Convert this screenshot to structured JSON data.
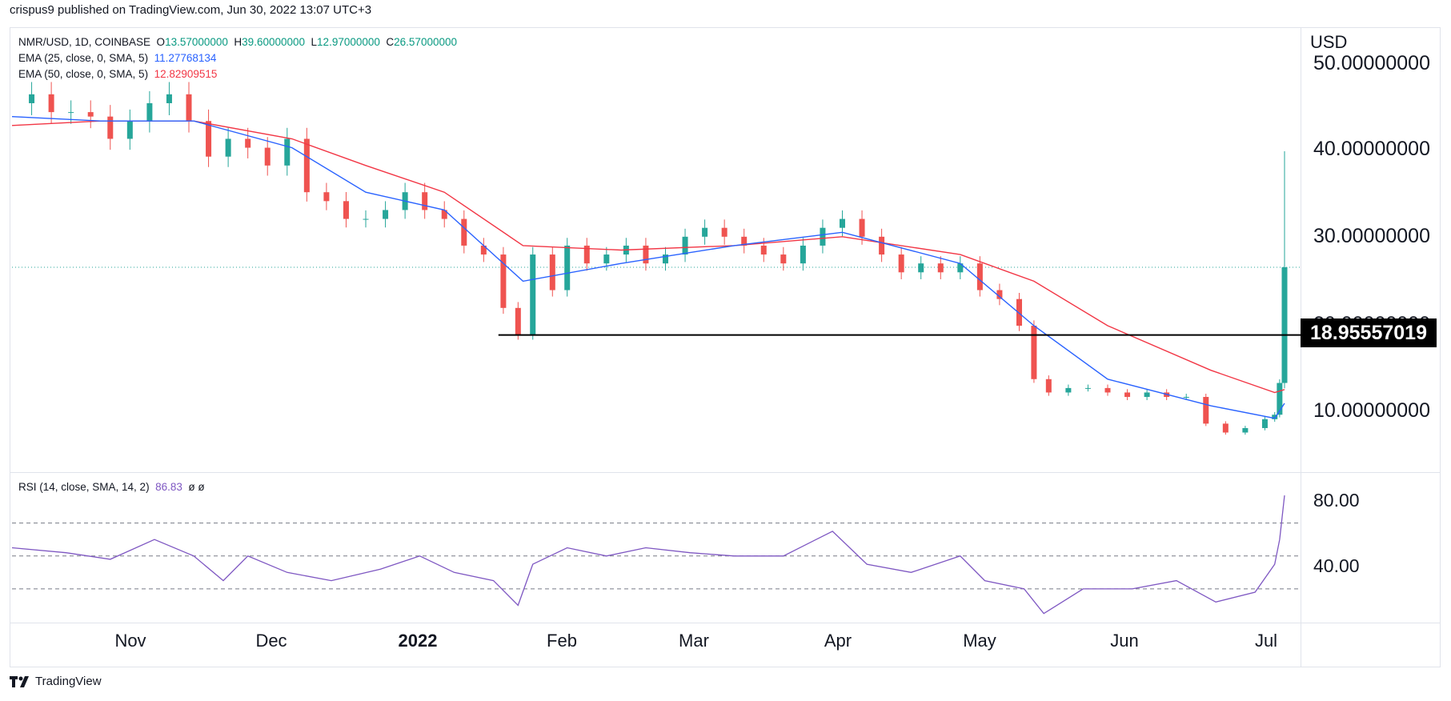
{
  "header": {
    "published": "crispus9 published on TradingView.com, Jun 30, 2022 13:07 UTC+3"
  },
  "legend": {
    "symbol": "NMR/USD, 1D, COINBASE",
    "o_label": "O",
    "o_val": "13.57000000",
    "h_label": "H",
    "h_val": "39.60000000",
    "l_label": "L",
    "l_val": "12.97000000",
    "c_label": "C",
    "c_val": "26.57000000",
    "ema25_label": "EMA (25, close, 0, SMA, 5)",
    "ema25_val": "11.27768134",
    "ema50_label": "EMA (50, close, 0, SMA, 5)",
    "ema50_val": "12.82909515",
    "rsi_label": "RSI (14, close, SMA, 14, 2)",
    "rsi_val": "86.83",
    "rsi_extra": "ø  ø"
  },
  "axis": {
    "currency": "USD",
    "price_ticks": [
      "50.00000000",
      "40.00000000",
      "30.00000000",
      "20.00000000",
      "10.00000000"
    ],
    "rsi_ticks": [
      "80.00",
      "40.00"
    ],
    "months": [
      "Nov",
      "Dec",
      "2022",
      "Feb",
      "Mar",
      "Apr",
      "May",
      "Jun",
      "Jul"
    ]
  },
  "price_tag": "18.95557019",
  "footer": {
    "brand": "TradingView"
  },
  "colors": {
    "up": "#26a69a",
    "down": "#ef5350",
    "ema25": "#2962ff",
    "ema50": "#f23645",
    "rsi": "#7e57c2",
    "support": "#000000"
  },
  "chart_data": {
    "type": "candlestick",
    "symbol": "NMR/USD",
    "interval": "1D",
    "x_start": "2021-10-14",
    "x_end": "2022-06-30",
    "price_axis": {
      "ylim": [
        4,
        53
      ],
      "ticks": [
        10,
        20,
        30,
        40,
        50
      ]
    },
    "support_level": {
      "value": 18.95557019,
      "from": "2022-01-21",
      "to": "2022-06-30"
    },
    "last_close": 26.57,
    "last_candle": {
      "date": "2022-06-30",
      "open": 13.57,
      "high": 39.6,
      "low": 12.97,
      "close": 26.57
    },
    "close_series": [
      [
        "2021-10-14",
        45
      ],
      [
        "2021-10-18",
        46
      ],
      [
        "2021-10-22",
        44
      ],
      [
        "2021-10-26",
        44
      ],
      [
        "2021-10-30",
        43.5
      ],
      [
        "2021-11-03",
        41
      ],
      [
        "2021-11-07",
        43
      ],
      [
        "2021-11-11",
        45
      ],
      [
        "2021-11-15",
        46
      ],
      [
        "2021-11-19",
        43
      ],
      [
        "2021-11-23",
        39
      ],
      [
        "2021-11-27",
        41
      ],
      [
        "2021-12-01",
        40
      ],
      [
        "2021-12-05",
        38
      ],
      [
        "2021-12-09",
        41
      ],
      [
        "2021-12-13",
        35
      ],
      [
        "2021-12-17",
        34
      ],
      [
        "2021-12-21",
        32
      ],
      [
        "2021-12-25",
        32
      ],
      [
        "2021-12-29",
        33
      ],
      [
        "2022-01-02",
        35
      ],
      [
        "2022-01-06",
        33
      ],
      [
        "2022-01-10",
        32
      ],
      [
        "2022-01-14",
        29
      ],
      [
        "2022-01-18",
        28
      ],
      [
        "2022-01-22",
        22
      ],
      [
        "2022-01-25",
        19
      ],
      [
        "2022-01-28",
        28
      ],
      [
        "2022-02-01",
        24
      ],
      [
        "2022-02-04",
        29
      ],
      [
        "2022-02-08",
        27
      ],
      [
        "2022-02-12",
        28
      ],
      [
        "2022-02-16",
        29
      ],
      [
        "2022-02-20",
        27
      ],
      [
        "2022-02-24",
        28
      ],
      [
        "2022-02-28",
        30
      ],
      [
        "2022-03-04",
        31
      ],
      [
        "2022-03-08",
        30
      ],
      [
        "2022-03-12",
        29
      ],
      [
        "2022-03-16",
        28
      ],
      [
        "2022-03-20",
        27
      ],
      [
        "2022-03-24",
        29
      ],
      [
        "2022-03-28",
        31
      ],
      [
        "2022-04-01",
        32
      ],
      [
        "2022-04-05",
        30
      ],
      [
        "2022-04-09",
        28
      ],
      [
        "2022-04-13",
        26
      ],
      [
        "2022-04-17",
        27
      ],
      [
        "2022-04-21",
        26
      ],
      [
        "2022-04-25",
        27
      ],
      [
        "2022-04-29",
        24
      ],
      [
        "2022-05-03",
        23
      ],
      [
        "2022-05-07",
        20
      ],
      [
        "2022-05-10",
        14
      ],
      [
        "2022-05-13",
        12.5
      ],
      [
        "2022-05-17",
        13
      ],
      [
        "2022-05-21",
        13
      ],
      [
        "2022-05-25",
        12.5
      ],
      [
        "2022-05-29",
        12
      ],
      [
        "2022-06-02",
        12.5
      ],
      [
        "2022-06-06",
        12
      ],
      [
        "2022-06-10",
        12
      ],
      [
        "2022-06-14",
        9
      ],
      [
        "2022-06-18",
        8
      ],
      [
        "2022-06-22",
        8.5
      ],
      [
        "2022-06-26",
        9.5
      ],
      [
        "2022-06-28",
        10
      ],
      [
        "2022-06-29",
        13.57
      ],
      [
        "2022-06-30",
        26.57
      ]
    ],
    "ema25_series": [
      [
        "2021-10-14",
        43.5
      ],
      [
        "2021-11-01",
        43
      ],
      [
        "2021-11-20",
        43
      ],
      [
        "2021-12-10",
        40
      ],
      [
        "2021-12-25",
        35
      ],
      [
        "2022-01-10",
        33
      ],
      [
        "2022-01-26",
        25
      ],
      [
        "2022-02-15",
        27
      ],
      [
        "2022-03-10",
        29
      ],
      [
        "2022-04-01",
        30.5
      ],
      [
        "2022-04-25",
        27
      ],
      [
        "2022-05-10",
        20
      ],
      [
        "2022-05-25",
        14
      ],
      [
        "2022-06-15",
        11
      ],
      [
        "2022-06-28",
        9.6
      ],
      [
        "2022-06-30",
        11.28
      ]
    ],
    "ema50_series": [
      [
        "2021-10-14",
        42.5
      ],
      [
        "2021-11-01",
        43
      ],
      [
        "2021-11-20",
        43
      ],
      [
        "2021-12-10",
        41
      ],
      [
        "2021-12-25",
        38
      ],
      [
        "2022-01-10",
        35
      ],
      [
        "2022-01-26",
        29
      ],
      [
        "2022-02-15",
        28.5
      ],
      [
        "2022-03-10",
        29
      ],
      [
        "2022-04-01",
        30
      ],
      [
        "2022-04-25",
        28
      ],
      [
        "2022-05-10",
        25
      ],
      [
        "2022-05-25",
        20
      ],
      [
        "2022-06-15",
        15
      ],
      [
        "2022-06-28",
        12.5
      ],
      [
        "2022-06-30",
        12.83
      ]
    ],
    "rsi": {
      "ylim": [
        10,
        100
      ],
      "levels": [
        70,
        50,
        30
      ],
      "series": [
        [
          "2021-10-14",
          55
        ],
        [
          "2021-10-25",
          52
        ],
        [
          "2021-11-03",
          48
        ],
        [
          "2021-11-12",
          60
        ],
        [
          "2021-11-20",
          50
        ],
        [
          "2021-11-26",
          35
        ],
        [
          "2021-12-01",
          50
        ],
        [
          "2021-12-09",
          40
        ],
        [
          "2021-12-18",
          35
        ],
        [
          "2021-12-28",
          42
        ],
        [
          "2022-01-05",
          50
        ],
        [
          "2022-01-12",
          40
        ],
        [
          "2022-01-20",
          35
        ],
        [
          "2022-01-25",
          20
        ],
        [
          "2022-01-28",
          45
        ],
        [
          "2022-02-04",
          55
        ],
        [
          "2022-02-12",
          50
        ],
        [
          "2022-02-20",
          55
        ],
        [
          "2022-03-01",
          52
        ],
        [
          "2022-03-10",
          50
        ],
        [
          "2022-03-20",
          50
        ],
        [
          "2022-03-30",
          65
        ],
        [
          "2022-04-06",
          45
        ],
        [
          "2022-04-15",
          40
        ],
        [
          "2022-04-25",
          50
        ],
        [
          "2022-04-30",
          35
        ],
        [
          "2022-05-08",
          30
        ],
        [
          "2022-05-12",
          15
        ],
        [
          "2022-05-20",
          30
        ],
        [
          "2022-05-30",
          30
        ],
        [
          "2022-06-08",
          35
        ],
        [
          "2022-06-16",
          22
        ],
        [
          "2022-06-24",
          28
        ],
        [
          "2022-06-28",
          45
        ],
        [
          "2022-06-29",
          60
        ],
        [
          "2022-06-30",
          86.83
        ]
      ]
    }
  }
}
